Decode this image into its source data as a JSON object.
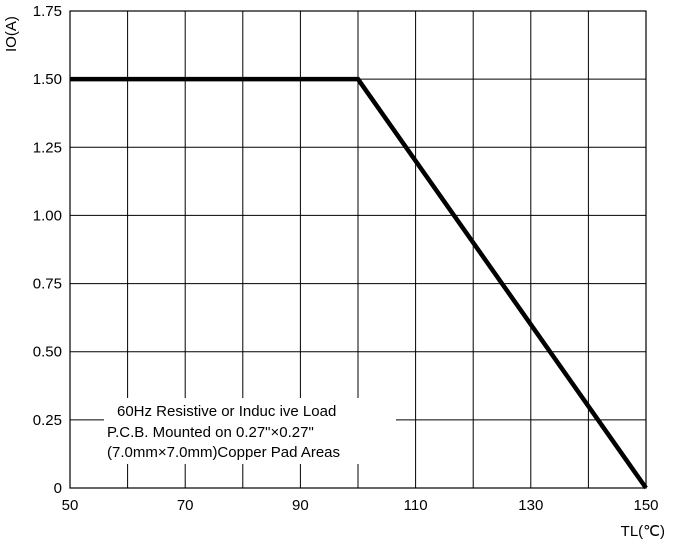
{
  "chart_data": {
    "type": "line",
    "title": "",
    "xlabel": "TL(℃)",
    "ylabel": "IO(A)",
    "xlim": [
      50,
      150
    ],
    "ylim": [
      0,
      1.75
    ],
    "xticks": [
      50,
      70,
      90,
      110,
      130,
      150
    ],
    "xtick_labels": [
      "50",
      "70",
      "90",
      "110",
      "130",
      "150"
    ],
    "xgrid": [
      50,
      60,
      70,
      80,
      90,
      100,
      110,
      120,
      130,
      140,
      150
    ],
    "yticks": [
      0,
      0.25,
      0.5,
      0.75,
      1.0,
      1.25,
      1.5,
      1.75
    ],
    "ytick_labels": [
      "0",
      "0.25",
      "0.50",
      "0.75",
      "1.00",
      "1.25",
      "1.50",
      "1.75"
    ],
    "grid": true,
    "series": [
      {
        "color": "#000000",
        "x": [
          50,
          100,
          150
        ],
        "y": [
          1.5,
          1.5,
          0
        ]
      }
    ],
    "annotation": {
      "lines": [
        "60Hz Resistive or Induc ive Load",
        "P.C.B. Mounted on 0.27\"×0.27\"",
        "(7.0mm×7.0mm)Copper Pad Areas"
      ]
    }
  }
}
